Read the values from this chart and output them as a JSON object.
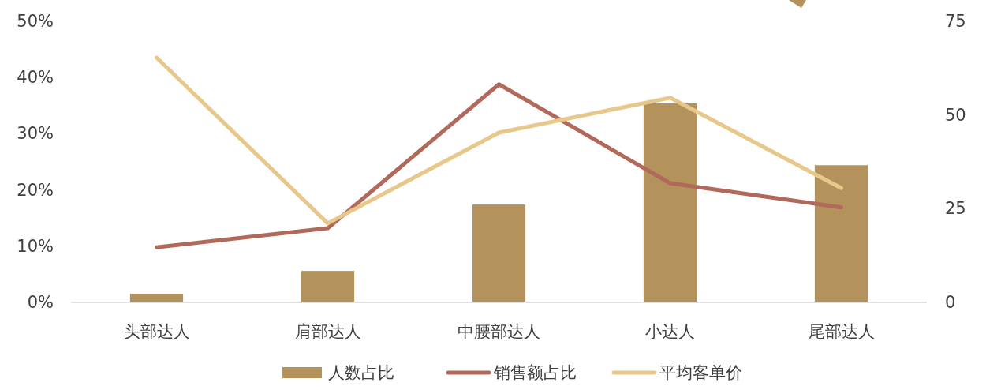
{
  "chart_data": {
    "type": "bar",
    "categories": [
      "头部达人",
      "肩部达人",
      "中腰部达人",
      "小达人",
      "尾部达人"
    ],
    "series": [
      {
        "name": "人数占比",
        "color": "#b3925c",
        "values": [
          1.5,
          5.6,
          17.4,
          35.4,
          24.4
        ]
      },
      {
        "name": "销售额占比",
        "type": "line",
        "color": "#b0695a",
        "values": [
          9.8,
          13.2,
          38.8,
          21.2,
          16.9
        ]
      },
      {
        "name": "平均客单价",
        "type": "line",
        "axis": "y2",
        "color": "#e8c88a",
        "values": [
          65.3,
          21.1,
          45.3,
          54.6,
          30.5
        ]
      }
    ],
    "ylim": [
      0,
      50
    ],
    "yticks": [
      {
        "value": 0,
        "label": "0%"
      },
      {
        "value": 10,
        "label": "10%"
      },
      {
        "value": 20,
        "label": "20%"
      },
      {
        "value": 30,
        "label": "30%"
      },
      {
        "value": 40,
        "label": "40%"
      },
      {
        "value": 50,
        "label": "50%"
      }
    ],
    "y2lim": [
      0,
      75
    ],
    "y2ticks": [
      0,
      25,
      50,
      75
    ],
    "grid": false,
    "legend": "bottom",
    "marker": "none",
    "line_style": "solid"
  }
}
